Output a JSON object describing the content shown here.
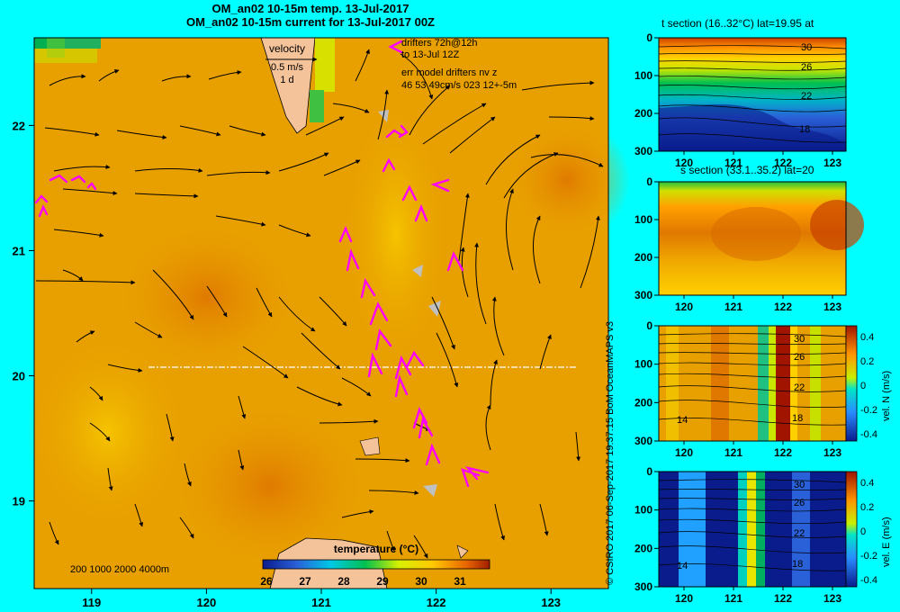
{
  "titles": {
    "line1": "OM_an02 10-15m temp. 13-Jul-2017",
    "line2": "OM_an02 10-15m current for 13-Jul-2017 00Z"
  },
  "legend_box": {
    "velocity_label": "velocity",
    "velocity_scale": "0.5 m/s",
    "velocity_time": "1 d",
    "drifters_line1": "drifters 72h@12h",
    "drifters_line2": "to 13-Jul 12Z",
    "err_line1": "err model drifters nv z",
    "err_line2": "46 53 49cm/s 023 12+-5m"
  },
  "depth_legend": "200 1000 2000 4000m",
  "colorbar": {
    "label": "temperature (°C)",
    "ticks": [
      "26",
      "27",
      "28",
      "29",
      "30",
      "31"
    ]
  },
  "credit": "© CSIRO 2017   06-Sep-2017 19:37:15 BoM OceanMAPS v3",
  "colors": {
    "background": "#00ffff",
    "drifter": "#ff00ff",
    "land": "#f5c39a",
    "warm_sea": "#e8a000"
  },
  "chart_data": [
    {
      "type": "heatmap",
      "name": "map",
      "x_ticks": [
        "119",
        "120",
        "121",
        "122",
        "123"
      ],
      "y_ticks": [
        "22",
        "21",
        "20",
        "19"
      ],
      "xlim": [
        118.5,
        123.5
      ],
      "ylim": [
        18.3,
        22.7
      ],
      "section_line_lat": 20
    },
    {
      "type": "heatmap",
      "name": "t-section",
      "title": "t section (16..32°C) lat=19.95 at",
      "x_ticks": [
        "120",
        "121",
        "122",
        "123"
      ],
      "y_ticks": [
        "0",
        "100",
        "200",
        "300"
      ],
      "contour_labels": [
        "30",
        "26",
        "22",
        "18"
      ]
    },
    {
      "type": "heatmap",
      "name": "s-section",
      "title": "s section (33.1..35.2) lat=20",
      "x_ticks": [
        "120",
        "121",
        "122",
        "123"
      ],
      "y_ticks": [
        "0",
        "100",
        "200",
        "300"
      ]
    },
    {
      "type": "heatmap",
      "name": "vel-n-section",
      "x_ticks": [
        "120",
        "121",
        "122",
        "123"
      ],
      "y_ticks": [
        "0",
        "100",
        "200",
        "300"
      ],
      "contour_labels": [
        "30",
        "26",
        "22",
        "18",
        "14"
      ],
      "colorbar_label": "vel. N (m/s)",
      "colorbar_ticks": [
        "0.4",
        "0.2",
        "0",
        "-0.2",
        "-0.4"
      ]
    },
    {
      "type": "heatmap",
      "name": "vel-e-section",
      "x_ticks": [
        "120",
        "121",
        "122",
        "123"
      ],
      "y_ticks": [
        "0",
        "100",
        "200",
        "300"
      ],
      "contour_labels": [
        "30",
        "26",
        "22",
        "18",
        "14"
      ],
      "colorbar_label": "vel. E (m/s)",
      "colorbar_ticks": [
        "0.4",
        "0.2",
        "0",
        "-0.2",
        "-0.4"
      ]
    }
  ]
}
